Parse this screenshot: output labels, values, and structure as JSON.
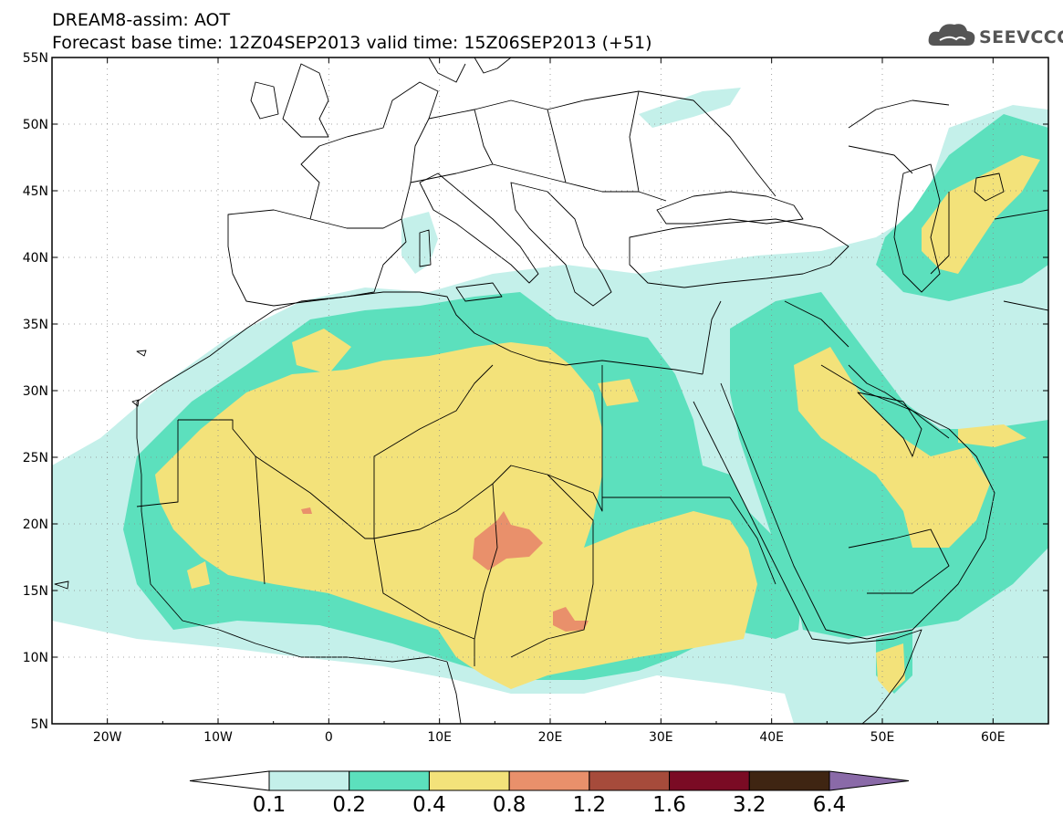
{
  "header": {
    "line1": "DREAM8-assim: AOT",
    "line2": "Forecast base time: 12Z04SEP2013     valid time: 15Z06SEP2013 (+51)"
  },
  "logo": {
    "text": "SEEVCCC",
    "icon": "cloud-icon"
  },
  "axes": {
    "x_ticks": [
      {
        "lon": -20,
        "label": "20W"
      },
      {
        "lon": -10,
        "label": "10W"
      },
      {
        "lon": 0,
        "label": "0"
      },
      {
        "lon": 10,
        "label": "10E"
      },
      {
        "lon": 20,
        "label": "20E"
      },
      {
        "lon": 30,
        "label": "30E"
      },
      {
        "lon": 40,
        "label": "40E"
      },
      {
        "lon": 50,
        "label": "50E"
      },
      {
        "lon": 60,
        "label": "60E"
      }
    ],
    "y_ticks": [
      {
        "lat": 55,
        "label": "55N"
      },
      {
        "lat": 50,
        "label": "50N"
      },
      {
        "lat": 45,
        "label": "45N"
      },
      {
        "lat": 40,
        "label": "40N"
      },
      {
        "lat": 35,
        "label": "35N"
      },
      {
        "lat": 30,
        "label": "30N"
      },
      {
        "lat": 25,
        "label": "25N"
      },
      {
        "lat": 20,
        "label": "20N"
      },
      {
        "lat": 15,
        "label": "15N"
      },
      {
        "lat": 10,
        "label": "10N"
      },
      {
        "lat": 5,
        "label": "5N"
      }
    ],
    "lon_range": [
      -25,
      65
    ],
    "lat_range": [
      5,
      55
    ],
    "grid": "dotted"
  },
  "colorbar": {
    "levels": [
      "0.1",
      "0.2",
      "0.4",
      "0.8",
      "1.2",
      "1.6",
      "3.2",
      "6.4"
    ],
    "colors": [
      "#ffffff",
      "#c4f0ea",
      "#5ce0bd",
      "#f3e27a",
      "#e9906b",
      "#a64b3b",
      "#7a0b24",
      "#3f2512",
      "#8a6aa8"
    ],
    "extend": "both"
  }
}
